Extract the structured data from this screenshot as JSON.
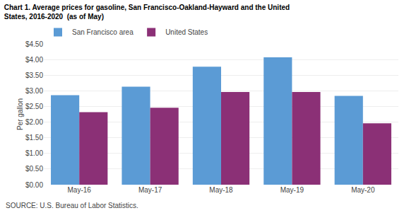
{
  "chart_data": {
    "type": "bar",
    "title": "Chart 1. Average prices for gasoline, San Francisco-Oakland-Hayward and the United",
    "subtitle": "States, 2016-2020  (as of May)",
    "y_label": "Per gallon",
    "annotations": [
      "SOURCE: U.S. Bureau of Labor Statistics."
    ],
    "categories": [
      "May-16",
      "May-17",
      "May-18",
      "May-19",
      "May-20"
    ],
    "series": [
      {
        "name": "San Francisco area",
        "color": "#5B9BD5",
        "values": [
          2.86,
          3.13,
          3.77,
          4.07,
          2.84
        ]
      },
      {
        "name": "United States",
        "color": "#8B3076",
        "values": [
          2.32,
          2.46,
          2.96,
          2.96,
          1.96
        ]
      }
    ],
    "ylim": [
      0.0,
      4.5
    ],
    "yticks": [
      {
        "value": 0.0,
        "label": "$0.00"
      },
      {
        "value": 0.5,
        "label": "$0.50"
      },
      {
        "value": 1.0,
        "label": "$1.00"
      },
      {
        "value": 1.5,
        "label": "$1.50"
      },
      {
        "value": 2.0,
        "label": "$2.00"
      },
      {
        "value": 2.5,
        "label": "$2.50"
      },
      {
        "value": 3.0,
        "label": "$3.00"
      },
      {
        "value": 3.5,
        "label": "$3.50"
      },
      {
        "value": 4.0,
        "label": "$4.00"
      },
      {
        "value": 4.5,
        "label": "$4.50"
      }
    ],
    "grid": true,
    "legend": "upper left"
  }
}
